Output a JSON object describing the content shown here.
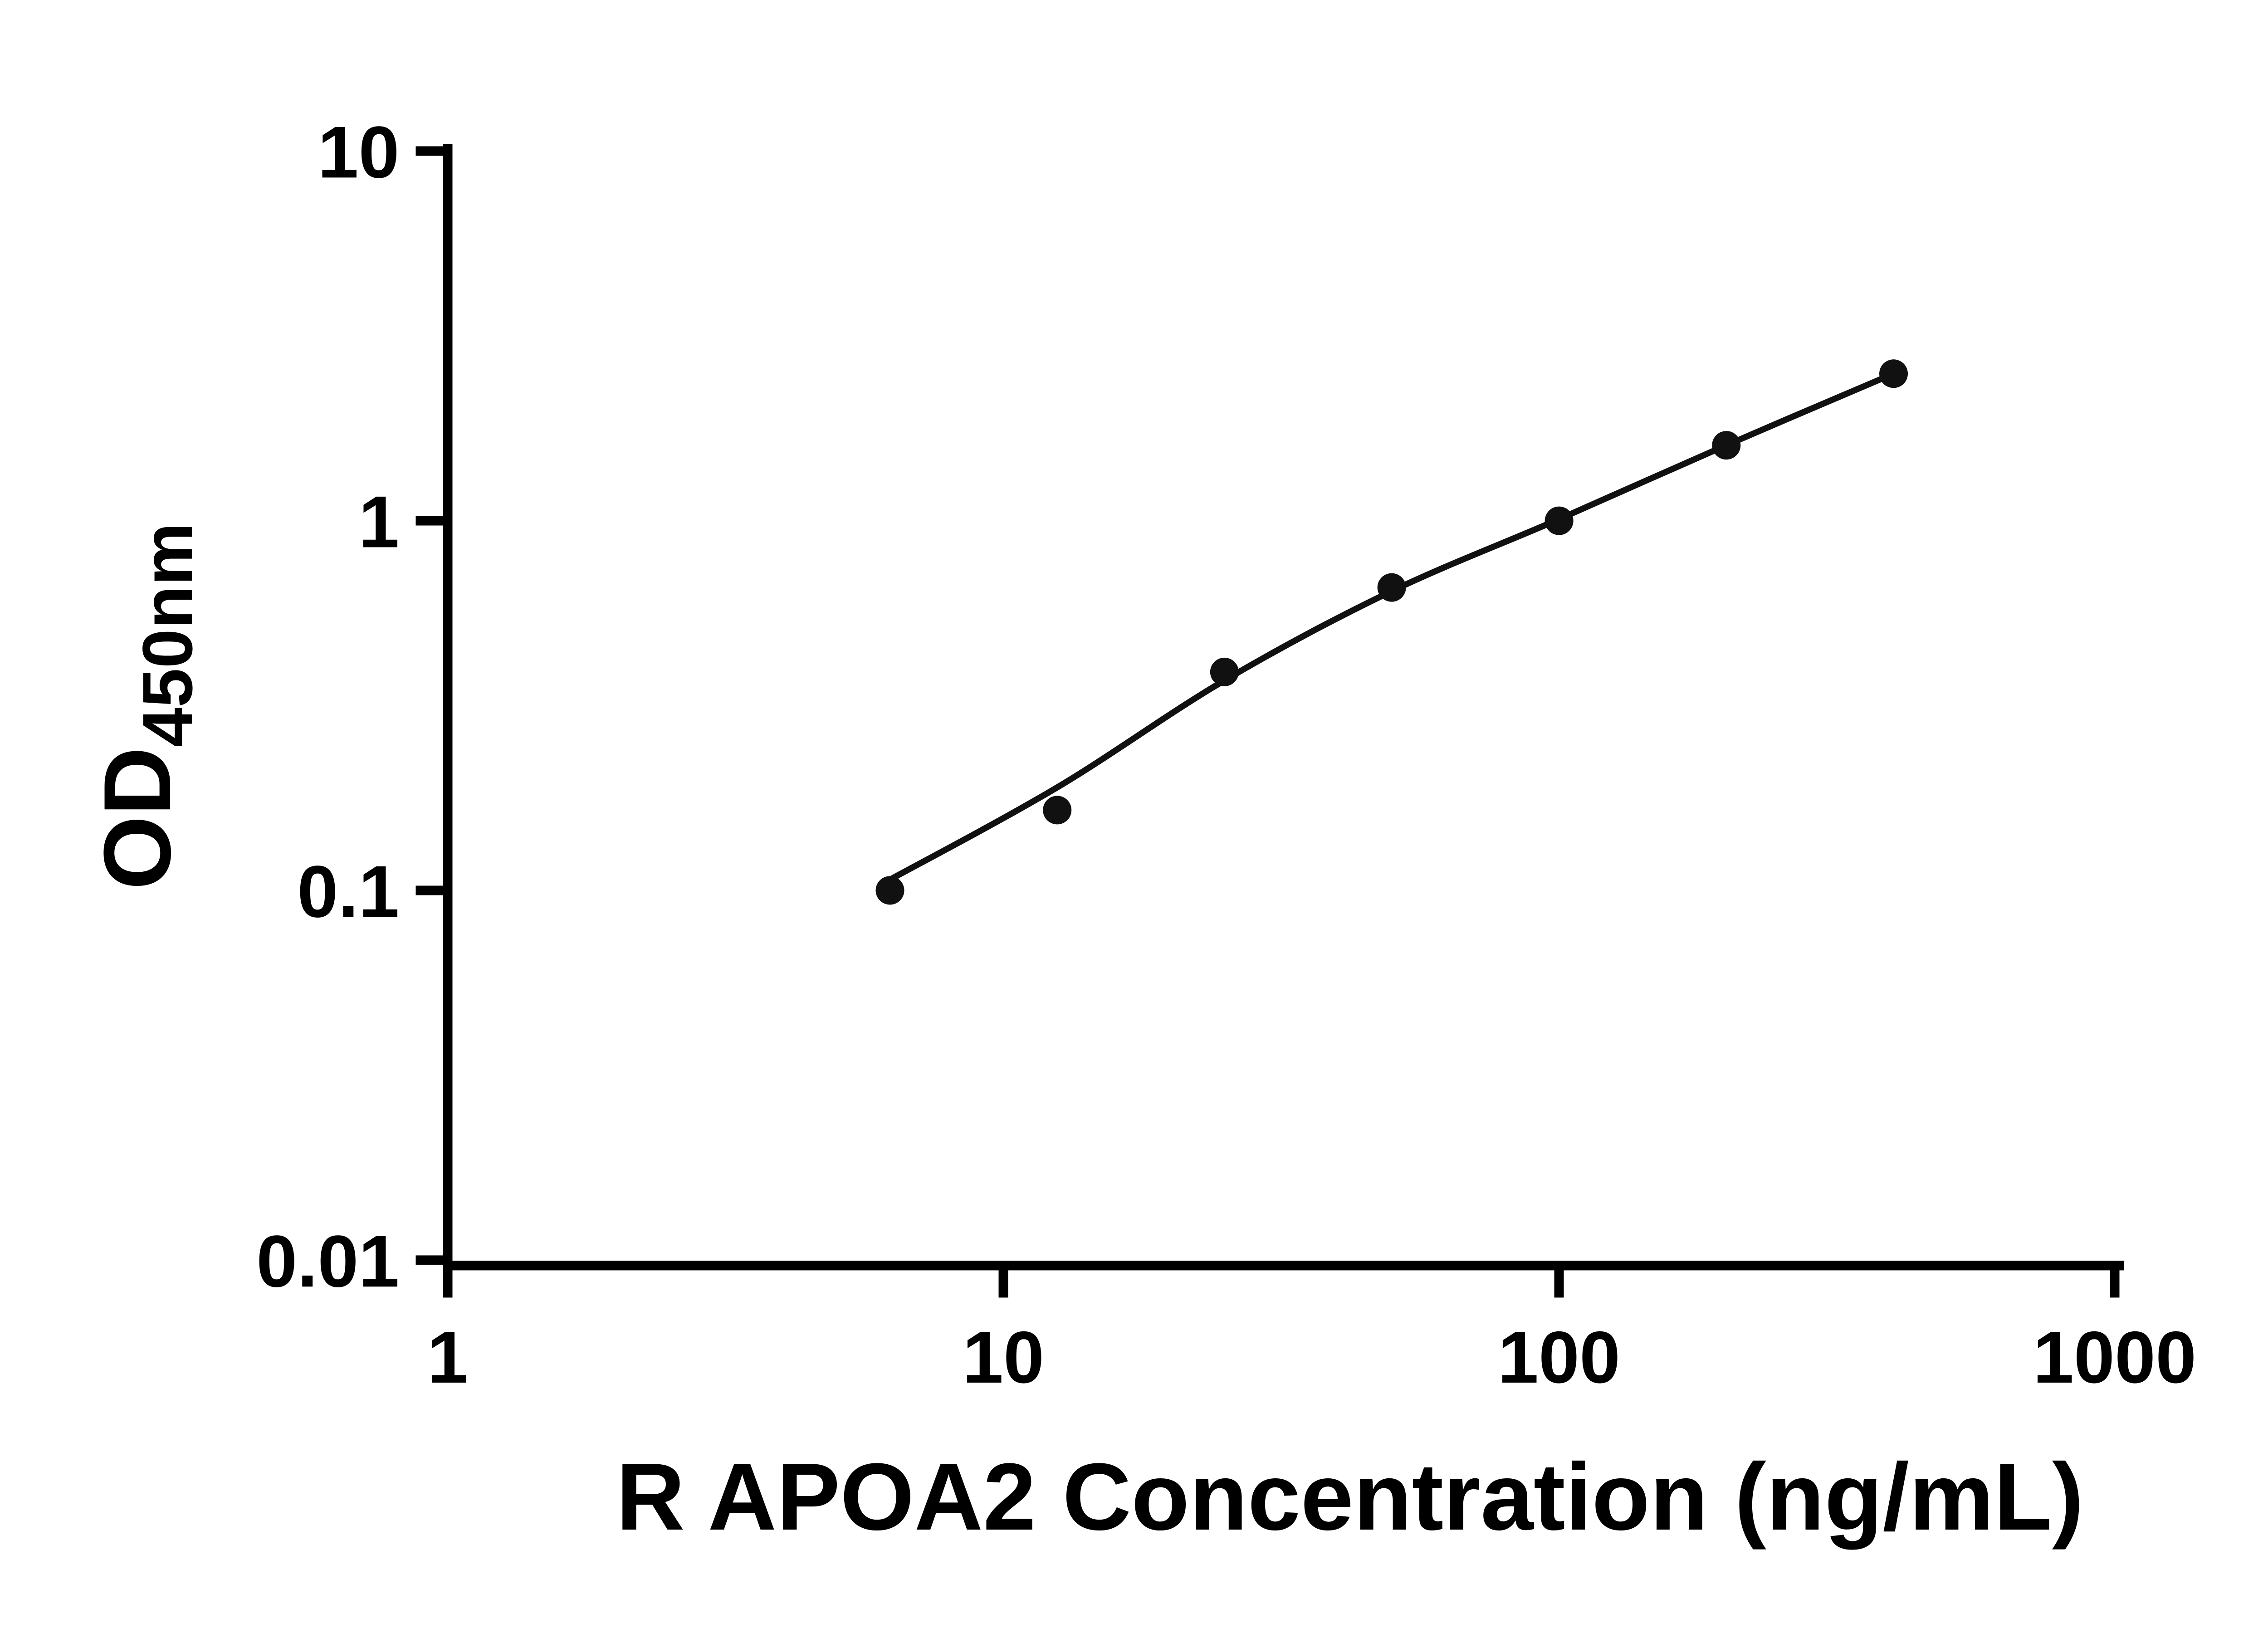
{
  "figure": {
    "background": "#ffffff"
  },
  "chart_data": {
    "type": "scatter",
    "title": "",
    "xlabel": "R APOA2 Concentration (ng/mL)",
    "ylabel": "OD",
    "ylabel_subscript": "450nm",
    "x_scale": "log",
    "y_scale": "log",
    "xlim": [
      1,
      1000
    ],
    "ylim": [
      0.01,
      10
    ],
    "x_ticks": [
      1,
      10,
      100,
      1000
    ],
    "x_tick_labels": [
      "1",
      "10",
      "100",
      "1000"
    ],
    "y_ticks": [
      10,
      1,
      0.1,
      0.01
    ],
    "y_tick_labels": [
      "10",
      "1",
      "0.1",
      "0.01"
    ],
    "grid": false,
    "legend": null,
    "points": [
      {
        "x": 6.25,
        "y": 0.1
      },
      {
        "x": 12.5,
        "y": 0.165
      },
      {
        "x": 25,
        "y": 0.39
      },
      {
        "x": 50,
        "y": 0.66
      },
      {
        "x": 100,
        "y": 1.0
      },
      {
        "x": 200,
        "y": 1.6
      },
      {
        "x": 400,
        "y": 2.5
      }
    ],
    "fit_curve": [
      {
        "x": 6.25,
        "y": 0.107
      },
      {
        "x": 12.5,
        "y": 0.19
      },
      {
        "x": 25,
        "y": 0.37
      },
      {
        "x": 50,
        "y": 0.645
      },
      {
        "x": 100,
        "y": 1.01
      },
      {
        "x": 200,
        "y": 1.6
      },
      {
        "x": 400,
        "y": 2.5
      }
    ],
    "colors": {
      "points": "#111111",
      "curve": "#111111",
      "axis": "#000000",
      "background": "#ffffff"
    }
  }
}
